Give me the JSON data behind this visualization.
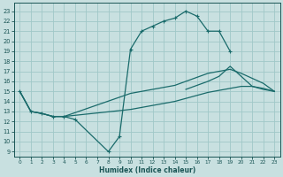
{
  "xlabel": "Humidex (Indice chaleur)",
  "bg_color": "#c8e0e0",
  "grid_color": "#a0c8c8",
  "line_color": "#1a6b6b",
  "xlim": [
    -0.5,
    23.5
  ],
  "ylim": [
    8.5,
    23.8
  ],
  "xticks": [
    0,
    1,
    2,
    3,
    4,
    5,
    6,
    7,
    8,
    9,
    10,
    11,
    12,
    13,
    14,
    15,
    16,
    17,
    18,
    19,
    20,
    21,
    22,
    23
  ],
  "yticks": [
    9,
    10,
    11,
    12,
    13,
    14,
    15,
    16,
    17,
    18,
    19,
    20,
    21,
    22,
    23
  ],
  "curve_marked_x": [
    0,
    1,
    2,
    3,
    4,
    5,
    8,
    9,
    10,
    11,
    12,
    13,
    14,
    15,
    16,
    17,
    18,
    19
  ],
  "curve_marked_y": [
    15.0,
    13.0,
    12.8,
    12.5,
    12.5,
    12.2,
    9.0,
    10.5,
    19.2,
    21.0,
    21.5,
    22.0,
    22.3,
    23.0,
    22.5,
    21.0,
    21.0,
    19.0
  ],
  "curve_top_x": [
    15,
    16,
    17,
    18,
    19,
    20,
    21,
    22,
    23
  ],
  "curve_top_y": [
    15.2,
    15.6,
    16.0,
    16.5,
    17.5,
    16.5,
    15.5,
    15.2,
    15.0
  ],
  "curve_mid_x": [
    0,
    1,
    2,
    3,
    4,
    10,
    11,
    12,
    13,
    14,
    15,
    16,
    17,
    18,
    19,
    20,
    21,
    22,
    23
  ],
  "curve_mid_y": [
    15.0,
    13.0,
    12.8,
    12.5,
    12.5,
    14.8,
    15.0,
    15.2,
    15.4,
    15.6,
    16.0,
    16.4,
    16.8,
    17.0,
    17.2,
    16.8,
    16.3,
    15.8,
    15.0
  ],
  "curve_low_x": [
    0,
    1,
    2,
    3,
    4,
    10,
    11,
    12,
    13,
    14,
    15,
    16,
    17,
    18,
    19,
    20,
    21,
    22,
    23
  ],
  "curve_low_y": [
    15.0,
    13.0,
    12.8,
    12.5,
    12.5,
    13.2,
    13.4,
    13.6,
    13.8,
    14.0,
    14.3,
    14.6,
    14.9,
    15.1,
    15.3,
    15.5,
    15.5,
    15.3,
    15.0
  ]
}
